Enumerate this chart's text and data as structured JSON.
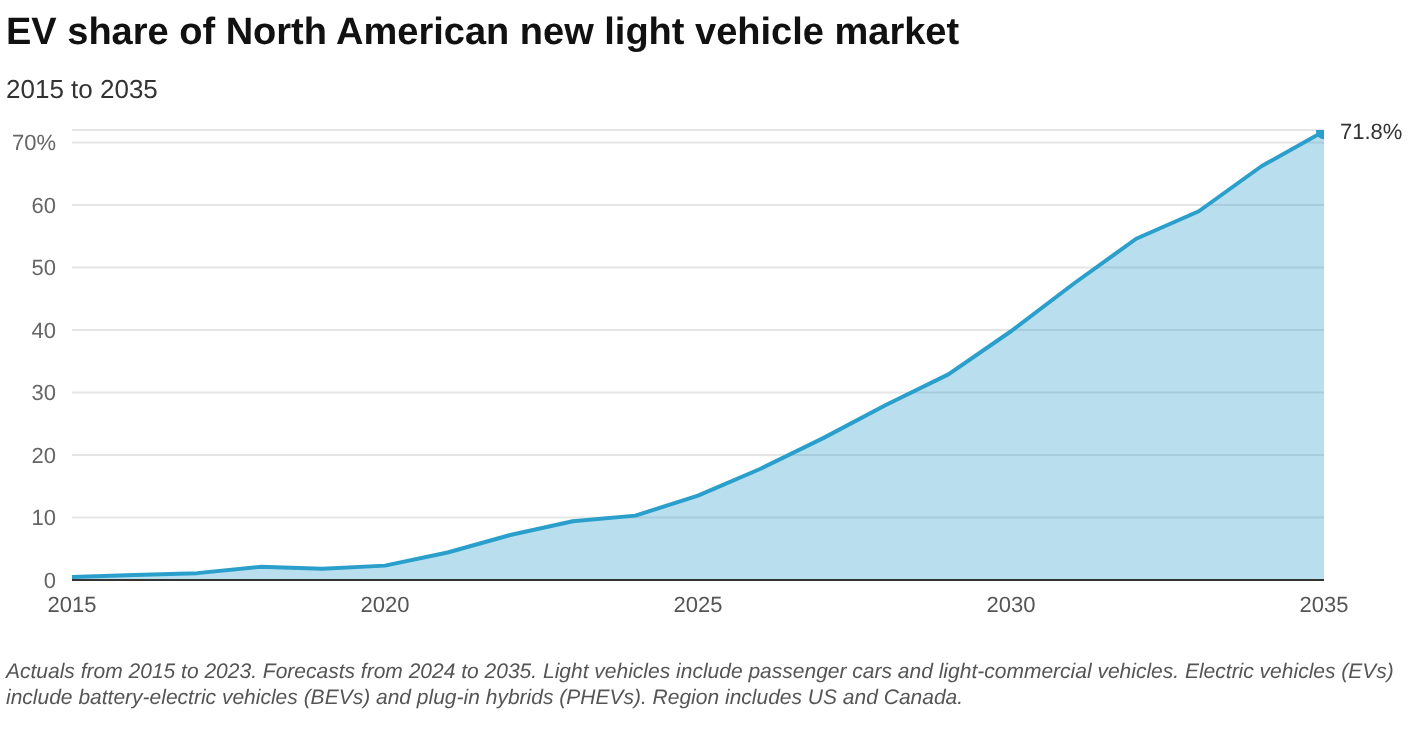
{
  "chart_data": {
    "type": "area",
    "title": "EV share of North American new light vehicle market",
    "subtitle": "2015 to 2035",
    "annotations": [
      "Actuals from 2015 to 2023. Forecasts from 2024 to 2035. Light vehicles include passenger cars and light-commercial vehicles. Electric vehicles (EVs) include battery-electric vehicles (BEVs) and plug-in hybrids (PHEVs). Region includes US and Canada."
    ],
    "x": [
      2015,
      2016,
      2017,
      2018,
      2019,
      2020,
      2021,
      2022,
      2023,
      2024,
      2025,
      2026,
      2027,
      2028,
      2029,
      2030,
      2031,
      2032,
      2033,
      2034,
      2035
    ],
    "series": [
      {
        "color": "#2a9fcc",
        "values": [
          0.5,
          0.8,
          1.1,
          2.1,
          1.8,
          2.3,
          4.4,
          7.2,
          9.4,
          10.3,
          13.5,
          17.8,
          22.7,
          28.0,
          32.9,
          39.8,
          47.4,
          54.6,
          59.0,
          66.2,
          71.8
        ],
        "value_labels": [
          null,
          null,
          null,
          null,
          null,
          null,
          null,
          null,
          null,
          null,
          null,
          null,
          null,
          null,
          null,
          null,
          null,
          null,
          null,
          null,
          "71.8%"
        ]
      }
    ],
    "xlim": [
      2015,
      2035
    ],
    "xticks": [
      2015,
      2020,
      2025,
      2030,
      2035
    ],
    "ylim": [
      0,
      72
    ],
    "yticks": [
      0,
      10,
      20,
      30,
      40,
      50,
      60,
      {
        "value": 70,
        "label": "70%"
      }
    ],
    "grid": "y",
    "legend": false
  }
}
